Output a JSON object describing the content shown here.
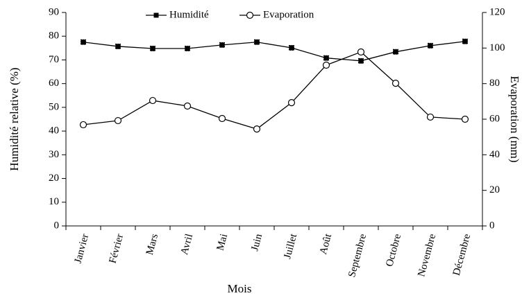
{
  "chart_data": {
    "type": "line",
    "categories": [
      "Janvier",
      "Février",
      "Mars",
      "Avril",
      "Mai",
      "Juin",
      "Juillet",
      "Août",
      "Septembre",
      "Octobre",
      "Novembre",
      "Décembre"
    ],
    "series": [
      {
        "name": "Humidité",
        "color": "#000000",
        "marker": "square",
        "values": [
          77.5,
          75.7,
          74.8,
          74.8,
          76.3,
          77.5,
          75.1,
          70.8,
          69.6,
          73.4,
          76.0,
          77.8
        ]
      },
      {
        "name": "Evaporation",
        "color": "#000000",
        "marker": "circle",
        "axis": "y2",
        "values": [
          56.9,
          59.2,
          70.5,
          67.4,
          60.4,
          54.5,
          69.3,
          90.4,
          97.8,
          80.2,
          61.2,
          60.0
        ]
      }
    ],
    "xlabel": "Mois",
    "ylabel": "Humidité relative (%)",
    "y2label": "Evaporation (mm)",
    "ylim": [
      0,
      90
    ],
    "yticks": [
      0,
      10,
      20,
      30,
      40,
      50,
      60,
      70,
      80,
      90
    ],
    "y2lim": [
      0,
      120
    ],
    "y2ticks": [
      0,
      20,
      40,
      60,
      80,
      100,
      120
    ],
    "legend": "top"
  }
}
